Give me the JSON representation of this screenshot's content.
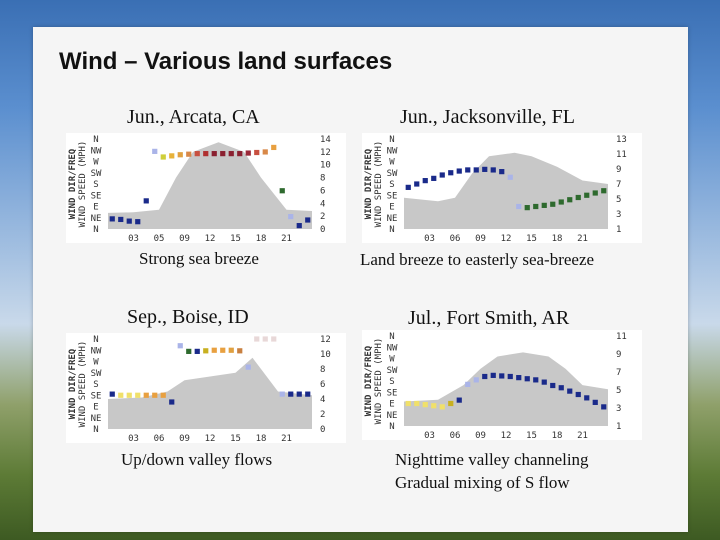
{
  "slide": {
    "title": "Wind – Various land surfaces"
  },
  "chart_data": [
    {
      "type": "scatter",
      "location": "Jun., Arcata, CA",
      "caption": [
        "Strong sea breeze"
      ],
      "ylabel": "WIND DIR/FREQ",
      "ylabel2": "WIND SPEED (MPH)",
      "dir_ticks": [
        "N",
        "NW",
        "W",
        "SW",
        "S",
        "SE",
        "E",
        "NE",
        "N"
      ],
      "speed_ticks": [
        "14",
        "12",
        "10",
        "8",
        "6",
        "4",
        "2",
        "0"
      ],
      "speed_max": 14,
      "x_ticks": [
        "03",
        "05",
        "09",
        "12",
        "15",
        "18",
        "21"
      ],
      "speed_curve": [
        [
          0,
          2.5
        ],
        [
          3,
          2.6
        ],
        [
          6,
          3
        ],
        [
          8,
          8
        ],
        [
          10,
          12
        ],
        [
          13,
          13.5
        ],
        [
          16,
          12
        ],
        [
          18,
          8
        ],
        [
          21,
          3
        ],
        [
          24,
          2.8
        ]
      ],
      "dir_points": [
        {
          "h": 0,
          "d": 7.1,
          "c": "#1a2a8a"
        },
        {
          "h": 1,
          "d": 7.15,
          "c": "#1a2a8a"
        },
        {
          "h": 2,
          "d": 7.3,
          "c": "#1a2a8a"
        },
        {
          "h": 3,
          "d": 7.35,
          "c": "#1a2a8a"
        },
        {
          "h": 4,
          "d": 5.5,
          "c": "#1a2a8a"
        },
        {
          "h": 5,
          "d": 1.1,
          "c": "#aab4e8"
        },
        {
          "h": 6,
          "d": 1.6,
          "c": "#cfcf3a"
        },
        {
          "h": 7,
          "d": 1.5,
          "c": "#e8b23a"
        },
        {
          "h": 8,
          "d": 1.4,
          "c": "#e0a040"
        },
        {
          "h": 9,
          "d": 1.35,
          "c": "#d88848"
        },
        {
          "h": 10,
          "d": 1.3,
          "c": "#c85040"
        },
        {
          "h": 11,
          "d": 1.3,
          "c": "#b03030"
        },
        {
          "h": 12,
          "d": 1.3,
          "c": "#8a2030"
        },
        {
          "h": 13,
          "d": 1.3,
          "c": "#8a2030"
        },
        {
          "h": 14,
          "d": 1.3,
          "c": "#8a2030"
        },
        {
          "h": 15,
          "d": 1.3,
          "c": "#8a2030"
        },
        {
          "h": 16,
          "d": 1.25,
          "c": "#9a2838"
        },
        {
          "h": 17,
          "d": 1.2,
          "c": "#c85040"
        },
        {
          "h": 18,
          "d": 1.15,
          "c": "#d88848"
        },
        {
          "h": 19,
          "d": 0.75,
          "c": "#e8a040"
        },
        {
          "h": 20,
          "d": 4.6,
          "c": "#2e6a2e"
        },
        {
          "h": 21,
          "d": 6.9,
          "c": "#aab4e8"
        },
        {
          "h": 22,
          "d": 7.7,
          "c": "#1a2a8a"
        },
        {
          "h": 23,
          "d": 7.2,
          "c": "#1a2a8a"
        }
      ]
    },
    {
      "type": "scatter",
      "location": "Jun., Jacksonville, FL",
      "caption": [
        "Land breeze to easterly sea-breeze"
      ],
      "ylabel": "WIND DIR/FREQ",
      "ylabel2": "WIND SPEED (MPH)",
      "dir_ticks": [
        "N",
        "NW",
        "W",
        "SW",
        "S",
        "SE",
        "E",
        "NE",
        "N"
      ],
      "speed_ticks": [
        "13",
        "11",
        "9",
        "7",
        "5",
        "3",
        "1"
      ],
      "speed_max": 13,
      "x_ticks": [
        "03",
        "06",
        "09",
        "12",
        "15",
        "18",
        "21"
      ],
      "speed_curve": [
        [
          0,
          4.5
        ],
        [
          4,
          4
        ],
        [
          6,
          4.5
        ],
        [
          8,
          8
        ],
        [
          10,
          10.5
        ],
        [
          13,
          11
        ],
        [
          15,
          10.5
        ],
        [
          18,
          9
        ],
        [
          21,
          7
        ],
        [
          24,
          6.5
        ]
      ],
      "dir_points": [
        {
          "h": 0,
          "d": 4.3,
          "c": "#1a2a8a"
        },
        {
          "h": 1,
          "d": 4.0,
          "c": "#1a2a8a"
        },
        {
          "h": 2,
          "d": 3.7,
          "c": "#1a2a8a"
        },
        {
          "h": 3,
          "d": 3.5,
          "c": "#1a2a8a"
        },
        {
          "h": 4,
          "d": 3.2,
          "c": "#1a2a8a"
        },
        {
          "h": 5,
          "d": 3.0,
          "c": "#1a2a8a"
        },
        {
          "h": 6,
          "d": 2.85,
          "c": "#1a2a8a"
        },
        {
          "h": 7,
          "d": 2.75,
          "c": "#1a2a8a"
        },
        {
          "h": 8,
          "d": 2.75,
          "c": "#1a2a8a"
        },
        {
          "h": 9,
          "d": 2.7,
          "c": "#1a2a8a"
        },
        {
          "h": 10,
          "d": 2.75,
          "c": "#1a2a8a"
        },
        {
          "h": 11,
          "d": 2.9,
          "c": "#1a2a8a"
        },
        {
          "h": 12,
          "d": 3.4,
          "c": "#aab4e8"
        },
        {
          "h": 13,
          "d": 6.0,
          "c": "#aab4e8"
        },
        {
          "h": 14,
          "d": 6.1,
          "c": "#2e6a2e"
        },
        {
          "h": 15,
          "d": 6.0,
          "c": "#2e6a2e"
        },
        {
          "h": 16,
          "d": 5.9,
          "c": "#2e6a2e"
        },
        {
          "h": 17,
          "d": 5.8,
          "c": "#2e6a2e"
        },
        {
          "h": 18,
          "d": 5.6,
          "c": "#2e6a2e"
        },
        {
          "h": 19,
          "d": 5.4,
          "c": "#2e6a2e"
        },
        {
          "h": 20,
          "d": 5.2,
          "c": "#2e6a2e"
        },
        {
          "h": 21,
          "d": 5.0,
          "c": "#2e6a2e"
        },
        {
          "h": 22,
          "d": 4.8,
          "c": "#2e6a2e"
        },
        {
          "h": 23,
          "d": 4.6,
          "c": "#2e6a2e"
        }
      ]
    },
    {
      "type": "scatter",
      "location": "Sep., Boise, ID",
      "caption": [
        "Up/down valley flows"
      ],
      "ylabel": "WIND DIR/FREQ",
      "ylabel2": "WIND SPEED (MPH)",
      "dir_ticks": [
        "N",
        "NW",
        "W",
        "SW",
        "S",
        "SE",
        "E",
        "NE",
        "N"
      ],
      "speed_ticks": [
        "12",
        "10",
        "8",
        "6",
        "4",
        "2",
        "0"
      ],
      "speed_max": 12,
      "x_ticks": [
        "03",
        "06",
        "09",
        "12",
        "15",
        "18",
        "21"
      ],
      "speed_curve": [
        [
          0,
          4
        ],
        [
          4,
          4.2
        ],
        [
          7,
          5
        ],
        [
          9,
          6.5
        ],
        [
          12,
          7
        ],
        [
          15,
          7.5
        ],
        [
          17,
          9.5
        ],
        [
          18,
          8
        ],
        [
          20,
          5
        ],
        [
          24,
          4.5
        ]
      ],
      "dir_points": [
        {
          "h": 0,
          "d": 4.9,
          "c": "#1a2a8a"
        },
        {
          "h": 1,
          "d": 5.0,
          "c": "#f0e06a"
        },
        {
          "h": 2,
          "d": 5.0,
          "c": "#f0e06a"
        },
        {
          "h": 3,
          "d": 5.0,
          "c": "#f0e06a"
        },
        {
          "h": 4,
          "d": 5.0,
          "c": "#e8a040"
        },
        {
          "h": 5,
          "d": 5.0,
          "c": "#e8a040"
        },
        {
          "h": 6,
          "d": 5.0,
          "c": "#e8a040"
        },
        {
          "h": 7,
          "d": 5.6,
          "c": "#1a2a8a"
        },
        {
          "h": 8,
          "d": 0.6,
          "c": "#aab4e8"
        },
        {
          "h": 9,
          "d": 1.1,
          "c": "#2e6a2e"
        },
        {
          "h": 10,
          "d": 1.1,
          "c": "#1a2a8a"
        },
        {
          "h": 11,
          "d": 1.05,
          "c": "#c8b020"
        },
        {
          "h": 12,
          "d": 1.0,
          "c": "#e8a040"
        },
        {
          "h": 13,
          "d": 1.0,
          "c": "#e8a040"
        },
        {
          "h": 14,
          "d": 1.0,
          "c": "#e0a040"
        },
        {
          "h": 15,
          "d": 1.05,
          "c": "#c88040"
        },
        {
          "h": 16,
          "d": 2.5,
          "c": "#aab4e8"
        },
        {
          "h": 17,
          "d": 0.0,
          "c": "#e8d8d8"
        },
        {
          "h": 18,
          "d": 0.0,
          "c": "#e8d8d8"
        },
        {
          "h": 19,
          "d": 0.0,
          "c": "#e8d8d8"
        },
        {
          "h": 20,
          "d": 4.9,
          "c": "#aab4e8"
        },
        {
          "h": 21,
          "d": 4.9,
          "c": "#1a2a8a"
        },
        {
          "h": 22,
          "d": 4.9,
          "c": "#1a2a8a"
        },
        {
          "h": 23,
          "d": 4.9,
          "c": "#1a2a8a"
        }
      ]
    },
    {
      "type": "scatter",
      "location": "Jul., Fort Smith, AR",
      "caption": [
        "Nighttime valley channeling",
        "Gradual mixing of S flow"
      ],
      "ylabel": "WIND DIR/FREQ",
      "ylabel2": "WIND SPEED (MPH)",
      "dir_ticks": [
        "N",
        "NW",
        "W",
        "SW",
        "S",
        "SE",
        "E",
        "NE",
        "N"
      ],
      "speed_ticks": [
        "11",
        "9",
        "7",
        "5",
        "3",
        "1"
      ],
      "speed_max": 11,
      "x_ticks": [
        "03",
        "06",
        "09",
        "12",
        "15",
        "18",
        "21"
      ],
      "speed_curve": [
        [
          0,
          3
        ],
        [
          4,
          3.2
        ],
        [
          7,
          5
        ],
        [
          9,
          7
        ],
        [
          11,
          8.5
        ],
        [
          14,
          9
        ],
        [
          17,
          8.5
        ],
        [
          19,
          7
        ],
        [
          21,
          5
        ],
        [
          24,
          4.5
        ]
      ],
      "dir_points": [
        {
          "h": 0,
          "d": 6.0,
          "c": "#f0e06a"
        },
        {
          "h": 1,
          "d": 6.0,
          "c": "#f0e06a"
        },
        {
          "h": 2,
          "d": 6.1,
          "c": "#f0e06a"
        },
        {
          "h": 3,
          "d": 6.2,
          "c": "#f0e06a"
        },
        {
          "h": 4,
          "d": 6.3,
          "c": "#f0e06a"
        },
        {
          "h": 5,
          "d": 6.0,
          "c": "#c8b020"
        },
        {
          "h": 6,
          "d": 5.7,
          "c": "#1a2a8a"
        },
        {
          "h": 7,
          "d": 4.3,
          "c": "#aab4e8"
        },
        {
          "h": 8,
          "d": 3.9,
          "c": "#aab4e8"
        },
        {
          "h": 9,
          "d": 3.6,
          "c": "#1a2a8a"
        },
        {
          "h": 10,
          "d": 3.5,
          "c": "#1a2a8a"
        },
        {
          "h": 11,
          "d": 3.55,
          "c": "#1a2a8a"
        },
        {
          "h": 12,
          "d": 3.6,
          "c": "#1a2a8a"
        },
        {
          "h": 13,
          "d": 3.7,
          "c": "#1a2a8a"
        },
        {
          "h": 14,
          "d": 3.8,
          "c": "#1a2a8a"
        },
        {
          "h": 15,
          "d": 3.9,
          "c": "#1a2a8a"
        },
        {
          "h": 16,
          "d": 4.1,
          "c": "#1a2a8a"
        },
        {
          "h": 17,
          "d": 4.4,
          "c": "#1a2a8a"
        },
        {
          "h": 18,
          "d": 4.6,
          "c": "#1a2a8a"
        },
        {
          "h": 19,
          "d": 4.9,
          "c": "#1a2a8a"
        },
        {
          "h": 20,
          "d": 5.2,
          "c": "#1a2a8a"
        },
        {
          "h": 21,
          "d": 5.5,
          "c": "#1a2a8a"
        },
        {
          "h": 22,
          "d": 5.9,
          "c": "#1a2a8a"
        },
        {
          "h": 23,
          "d": 6.3,
          "c": "#1a2a8a"
        }
      ]
    }
  ]
}
